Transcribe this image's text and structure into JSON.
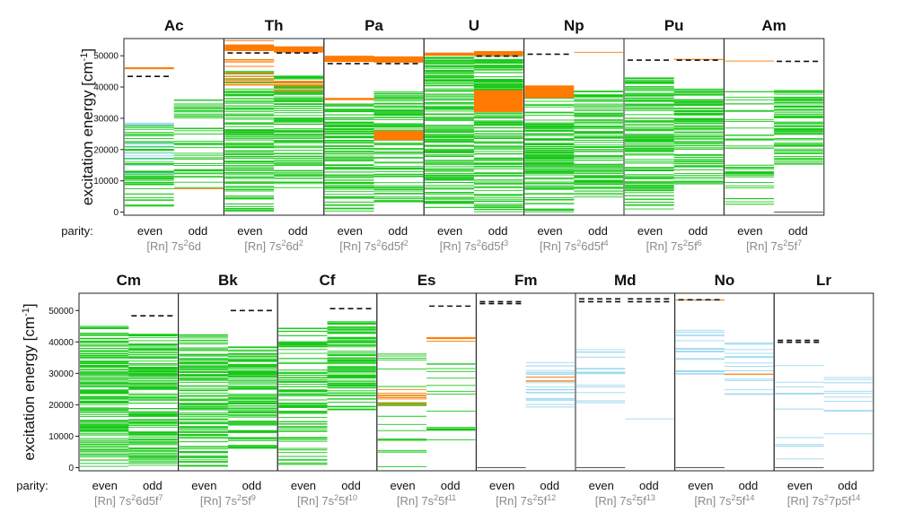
{
  "figure": {
    "ylabel": "excitation energy [cm",
    "ylabel_sup": "-1",
    "ylabel_tail": "]",
    "parity_label": "parity:",
    "even_label": "even",
    "odd_label": "odd",
    "colors": {
      "known": "#19c819",
      "predicted": "#ff7a00",
      "theory": "#8fd3ee",
      "ionization": "#111111",
      "frame": "#222222"
    }
  },
  "chart_data": [
    {
      "type": "bar",
      "row": 1,
      "yticks": [
        0,
        10000,
        20000,
        30000,
        40000,
        50000
      ],
      "ylim": [
        -1000,
        55500
      ],
      "panels": [
        {
          "element": "Ac",
          "config": "[Rn] 7s",
          "sup1": "2",
          "mid": "6d",
          "sup2": "",
          "ionization": {
            "even": [
              43400
            ],
            "odd": []
          },
          "even": {
            "green": [
              [
                0,
                28500,
                55
              ]
            ],
            "orange": [
              [
                45300,
                46500,
                4
              ]
            ],
            "blue": [
              [
                11500,
                28500,
                14
              ]
            ],
            "thin": []
          },
          "odd": {
            "green": [
              [
                7500,
                36000,
                40
              ]
            ],
            "orange": [
              [
                7500,
                7500,
                1
              ]
            ],
            "blue": [],
            "thin": []
          }
        },
        {
          "element": "Th",
          "config": "[Rn] 7s",
          "sup1": "2",
          "mid": "6d",
          "sup2": "2",
          "ionization": {
            "even": [
              50900
            ],
            "odd": [
              50900
            ]
          },
          "even": {
            "green": [
              [
                0,
                45500,
                120
              ]
            ],
            "orange": [
              [
                38000,
                55000,
                22
              ],
              [
                51500,
                53500,
                1
              ]
            ],
            "blue": [],
            "thin": []
          },
          "odd": {
            "green": [
              [
                7500,
                44500,
                110
              ]
            ],
            "orange": [
              [
                38000,
                42000,
                10
              ],
              [
                51000,
                53000,
                1
              ]
            ],
            "blue": [],
            "thin": []
          }
        },
        {
          "element": "Pa",
          "config": "[Rn] 7s",
          "sup1": "2",
          "mid": "6d5f",
          "sup2": "2",
          "ionization": {
            "even": [
              47500
            ],
            "odd": [
              47500
            ]
          },
          "even": {
            "green": [
              [
                0,
                35000,
                110
              ]
            ],
            "orange": [
              [
                35800,
                36500,
                1
              ],
              [
                48000,
                50000,
                1
              ]
            ],
            "blue": [],
            "thin": []
          },
          "odd": {
            "green": [
              [
                2000,
                38500,
                100
              ]
            ],
            "orange": [
              [
                23000,
                26000,
                1
              ],
              [
                47800,
                49800,
                1
              ]
            ],
            "blue": [],
            "thin": []
          }
        },
        {
          "element": "U",
          "config": "[Rn] 7s",
          "sup1": "2",
          "mid": "6d5f",
          "sup2": "3",
          "ionization": {
            "even": [],
            "odd": [
              49900
            ]
          },
          "even": {
            "green": [
              [
                0,
                50000,
                170
              ]
            ],
            "orange": [
              [
                50000,
                51000,
                1
              ]
            ],
            "blue": [],
            "thin": []
          },
          "odd": {
            "green": [
              [
                0,
                51000,
                160
              ]
            ],
            "orange": [
              [
                32000,
                39000,
                1
              ],
              [
                50000,
                51500,
                1
              ]
            ],
            "blue": [],
            "thin": []
          }
        },
        {
          "element": "Np",
          "config": "[Rn] 7s",
          "sup1": "2",
          "mid": "6d5f",
          "sup2": "4",
          "ionization": {
            "even": [
              50500
            ],
            "odd": []
          },
          "even": {
            "green": [
              [
                0,
                38000,
                120
              ]
            ],
            "orange": [
              [
                36500,
                40500,
                1
              ]
            ],
            "blue": [],
            "thin": []
          },
          "odd": {
            "green": [
              [
                4000,
                39000,
                100
              ]
            ],
            "orange": [
              [
                50900,
                51300,
                1
              ]
            ],
            "blue": [],
            "thin": []
          }
        },
        {
          "element": "Pu",
          "config": "[Rn] 7s",
          "sup1": "2",
          "mid": "5f",
          "sup2": "6",
          "ionization": {
            "even": [
              48600
            ],
            "odd": [
              48600
            ]
          },
          "even": {
            "green": [
              [
                0,
                43000,
                120
              ]
            ],
            "orange": [],
            "blue": [],
            "thin": []
          },
          "odd": {
            "green": [
              [
                8500,
                39500,
                110
              ]
            ],
            "orange": [
              [
                48800,
                49000,
                2
              ]
            ],
            "blue": [],
            "thin": []
          }
        },
        {
          "element": "Am",
          "config": "[Rn] 7s",
          "sup1": "2",
          "mid": "5f",
          "sup2": "7",
          "ionization": {
            "even": [],
            "odd": [
              48200
            ]
          },
          "even": {
            "green": [
              [
                0,
                39000,
                40
              ]
            ],
            "orange": [
              [
                48300,
                48300,
                1
              ]
            ],
            "blue": [],
            "thin": []
          },
          "odd": {
            "green": [
              [
                15000,
                39500,
                70
              ]
            ],
            "orange": [],
            "blue": [],
            "thin": [
              [
                0,
                0,
                1
              ]
            ]
          }
        }
      ]
    },
    {
      "type": "bar",
      "row": 2,
      "yticks": [
        0,
        10000,
        20000,
        30000,
        40000,
        50000
      ],
      "ylim": [
        -1000,
        55500
      ],
      "panels": [
        {
          "element": "Cm",
          "config": "[Rn] 7s",
          "sup1": "2",
          "mid": "6d5f",
          "sup2": "7",
          "ionization": {
            "even": [],
            "odd": [
              48300
            ]
          },
          "even": {
            "green": [
              [
                0,
                45000,
                150
              ]
            ],
            "orange": [],
            "blue": [],
            "thin": []
          },
          "odd": {
            "green": [
              [
                0,
                42500,
                150
              ]
            ],
            "orange": [],
            "blue": [],
            "thin": []
          }
        },
        {
          "element": "Bk",
          "config": "[Rn] 7s",
          "sup1": "2",
          "mid": "5f",
          "sup2": "9",
          "ionization": {
            "even": [],
            "odd": [
              50000
            ]
          },
          "even": {
            "green": [
              [
                0,
                42500,
                120
              ]
            ],
            "orange": [],
            "blue": [],
            "thin": []
          },
          "odd": {
            "green": [
              [
                6000,
                38500,
                110
              ]
            ],
            "orange": [],
            "blue": [],
            "thin": []
          }
        },
        {
          "element": "Cf",
          "config": "[Rn] 7s",
          "sup1": "2",
          "mid": "5f",
          "sup2": "10",
          "ionization": {
            "even": [],
            "odd": [
              50600
            ]
          },
          "even": {
            "green": [
              [
                0,
                44500,
                90
              ]
            ],
            "orange": [],
            "blue": [],
            "thin": []
          },
          "odd": {
            "green": [
              [
                17500,
                46500,
                100
              ]
            ],
            "orange": [],
            "blue": [],
            "thin": []
          }
        },
        {
          "element": "Es",
          "config": "[Rn] 7s",
          "sup1": "2",
          "mid": "5f",
          "sup2": "11",
          "ionization": {
            "even": [],
            "odd": [
              51400
            ]
          },
          "even": {
            "green": [
              [
                0,
                38500,
                20
              ]
            ],
            "orange": [
              [
                19500,
                25000,
                8
              ]
            ],
            "blue": [],
            "thin": []
          },
          "odd": {
            "green": [
              [
                8000,
                41000,
                15
              ]
            ],
            "orange": [
              [
                40000,
                41500,
                4
              ]
            ],
            "blue": [],
            "thin": []
          }
        },
        {
          "element": "Fm",
          "config": "[Rn] 7s",
          "sup1": "2",
          "mid": "5f",
          "sup2": "12",
          "ionization": {
            "even": [
              52200,
              52800
            ],
            "odd": []
          },
          "even": {
            "green": [],
            "orange": [],
            "blue": [],
            "thin": [
              [
                0,
                0,
                1
              ]
            ]
          },
          "odd": {
            "green": [],
            "orange": [
              [
                27000,
                29000,
                3
              ]
            ],
            "blue": [
              [
                19000,
                35000,
                22
              ]
            ],
            "thin": []
          }
        },
        {
          "element": "Md",
          "config": "[Rn] 7s",
          "sup1": "2",
          "mid": "5f",
          "sup2": "13",
          "ionization": {
            "even": [
              52800,
              53700
            ],
            "odd": [
              52800,
              53700
            ]
          },
          "even": {
            "green": [],
            "orange": [],
            "blue": [
              [
                19000,
                38000,
                14
              ]
            ],
            "thin": [
              [
                0,
                0,
                1
              ]
            ]
          },
          "odd": {
            "green": [],
            "orange": [],
            "blue": [
              [
                15500,
                15500,
                1
              ]
            ],
            "thin": []
          }
        },
        {
          "element": "No",
          "config": "[Rn] 7s",
          "sup1": "2",
          "mid": "5f",
          "sup2": "14",
          "ionization": {
            "even": [
              53400
            ],
            "odd": []
          },
          "even": {
            "green": [],
            "orange": [
              [
                53100,
                53500,
                2
              ]
            ],
            "blue": [
              [
                28500,
                44000,
                16
              ]
            ],
            "thin": [
              [
                0,
                0,
                1
              ]
            ]
          },
          "odd": {
            "green": [],
            "orange": [
              [
                29500,
                30000,
                2
              ]
            ],
            "blue": [
              [
                19500,
                42000,
                14
              ]
            ],
            "thin": []
          }
        },
        {
          "element": "Lr",
          "config": "[Rn] 7s",
          "sup1": "2",
          "mid": "7p5f",
          "sup2": "14",
          "ionization": {
            "even": [
              39900,
              40500
            ],
            "odd": []
          },
          "even": {
            "green": [],
            "orange": [],
            "blue": [
              [
                1000,
                34000,
                10
              ]
            ],
            "thin": [
              [
                0,
                0,
                1
              ]
            ]
          },
          "odd": {
            "green": [],
            "orange": [],
            "blue": [
              [
                8500,
                33000,
                10
              ]
            ],
            "thin": []
          }
        }
      ]
    }
  ]
}
